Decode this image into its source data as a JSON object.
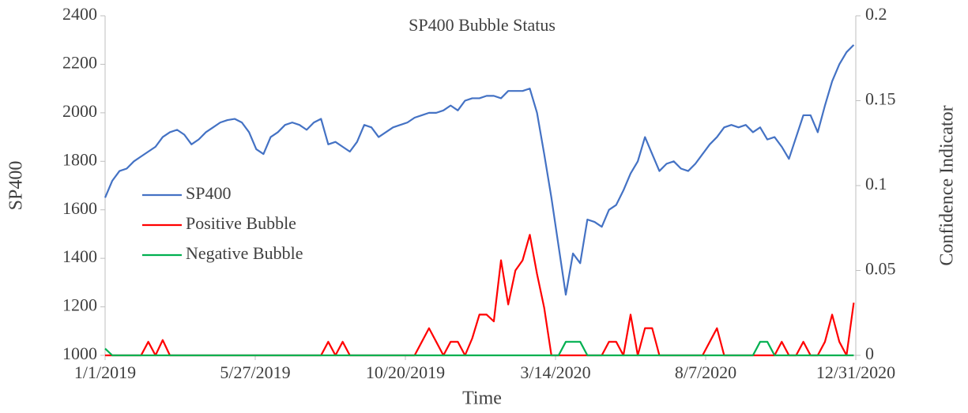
{
  "chart_data": {
    "type": "line",
    "title": "SP400 Bubble Status",
    "xlabel": "Time",
    "ylabel": "SP400",
    "y2label": "Confidence Indicator",
    "x": [
      "1/1/2019",
      "1/8/2019",
      "1/15/2019",
      "1/22/2019",
      "1/29/2019",
      "2/5/2019",
      "2/12/2019",
      "2/19/2019",
      "2/26/2019",
      "3/5/2019",
      "3/12/2019",
      "3/19/2019",
      "3/26/2019",
      "4/2/2019",
      "4/9/2019",
      "4/16/2019",
      "4/23/2019",
      "4/30/2019",
      "5/7/2019",
      "5/14/2019",
      "5/21/2019",
      "5/28/2019",
      "6/4/2019",
      "6/11/2019",
      "6/18/2019",
      "6/25/2019",
      "7/2/2019",
      "7/9/2019",
      "7/16/2019",
      "7/23/2019",
      "7/30/2019",
      "8/6/2019",
      "8/13/2019",
      "8/20/2019",
      "8/27/2019",
      "9/3/2019",
      "9/10/2019",
      "9/17/2019",
      "9/24/2019",
      "10/1/2019",
      "10/8/2019",
      "10/15/2019",
      "10/22/2019",
      "10/29/2019",
      "11/5/2019",
      "11/12/2019",
      "11/19/2019",
      "11/26/2019",
      "12/3/2019",
      "12/10/2019",
      "12/17/2019",
      "12/24/2019",
      "12/31/2019",
      "1/7/2020",
      "1/14/2020",
      "1/21/2020",
      "1/28/2020",
      "2/4/2020",
      "2/11/2020",
      "2/18/2020",
      "2/25/2020",
      "3/3/2020",
      "3/10/2020",
      "3/17/2020",
      "3/24/2020",
      "3/31/2020",
      "4/7/2020",
      "4/14/2020",
      "4/21/2020",
      "4/28/2020",
      "5/5/2020",
      "5/12/2020",
      "5/19/2020",
      "5/26/2020",
      "6/2/2020",
      "6/9/2020",
      "6/16/2020",
      "6/23/2020",
      "6/30/2020",
      "7/7/2020",
      "7/14/2020",
      "7/21/2020",
      "7/28/2020",
      "8/4/2020",
      "8/11/2020",
      "8/18/2020",
      "8/25/2020",
      "9/1/2020",
      "9/8/2020",
      "9/15/2020",
      "9/22/2020",
      "9/29/2020",
      "10/6/2020",
      "10/13/2020",
      "10/20/2020",
      "10/27/2020",
      "11/3/2020",
      "11/10/2020",
      "11/17/2020",
      "11/24/2020",
      "12/1/2020",
      "12/8/2020",
      "12/15/2020",
      "12/22/2020",
      "12/29/2020"
    ],
    "series": [
      {
        "name": "SP400",
        "color": "#4472c4",
        "values": [
          1650,
          1720,
          1760,
          1770,
          1800,
          1820,
          1840,
          1860,
          1900,
          1920,
          1930,
          1910,
          1870,
          1890,
          1920,
          1940,
          1960,
          1970,
          1975,
          1960,
          1920,
          1850,
          1830,
          1900,
          1920,
          1950,
          1960,
          1950,
          1930,
          1960,
          1975,
          1870,
          1880,
          1860,
          1840,
          1880,
          1950,
          1940,
          1900,
          1920,
          1940,
          1950,
          1960,
          1980,
          1990,
          2000,
          2000,
          2010,
          2030,
          2010,
          2050,
          2060,
          2060,
          2070,
          2070,
          2060,
          2090,
          2090,
          2090,
          2100,
          2000,
          1830,
          1650,
          1450,
          1250,
          1420,
          1380,
          1560,
          1550,
          1530,
          1600,
          1620,
          1680,
          1750,
          1800,
          1900,
          1830,
          1760,
          1790,
          1800,
          1770,
          1760,
          1790,
          1830,
          1870,
          1900,
          1940,
          1950,
          1940,
          1950,
          1920,
          1940,
          1890,
          1900,
          1860,
          1810,
          1900,
          1990,
          1990,
          1920,
          2030,
          2130,
          2200,
          2250,
          2280
        ]
      },
      {
        "name": "Positive Bubble",
        "color": "#ff0000",
        "axis": "y2",
        "values": [
          0,
          0,
          0,
          0,
          0,
          0,
          0.008,
          0,
          0.009,
          0,
          0,
          0,
          0,
          0,
          0,
          0,
          0,
          0,
          0,
          0,
          0,
          0,
          0,
          0,
          0,
          0,
          0,
          0,
          0,
          0,
          0,
          0.008,
          0,
          0.008,
          0,
          0,
          0,
          0,
          0,
          0,
          0,
          0,
          0,
          0,
          0.008,
          0.016,
          0.008,
          0,
          0.008,
          0.008,
          0,
          0.01,
          0.024,
          0.024,
          0.02,
          0.056,
          0.03,
          0.05,
          0.056,
          0.071,
          0.048,
          0.028,
          0,
          0,
          0,
          0,
          0,
          0,
          0,
          0,
          0.008,
          0.008,
          0,
          0.024,
          0,
          0.016,
          0.016,
          0,
          0,
          0,
          0,
          0,
          0,
          0,
          0.008,
          0.016,
          0,
          0,
          0,
          0,
          0,
          0,
          0,
          0,
          0.008,
          0,
          0,
          0.008,
          0,
          0,
          0.008,
          0.024,
          0.008,
          0,
          0.031
        ]
      },
      {
        "name": "Negative Bubble",
        "color": "#00b050",
        "axis": "y2",
        "values": [
          0.004,
          0,
          0,
          0,
          0,
          0,
          0,
          0,
          0,
          0,
          0,
          0,
          0,
          0,
          0,
          0,
          0,
          0,
          0,
          0,
          0,
          0,
          0,
          0,
          0,
          0,
          0,
          0,
          0,
          0,
          0,
          0,
          0,
          0,
          0,
          0,
          0,
          0,
          0,
          0,
          0,
          0,
          0,
          0,
          0,
          0,
          0,
          0,
          0,
          0,
          0,
          0,
          0,
          0,
          0,
          0,
          0,
          0,
          0,
          0,
          0,
          0,
          0,
          0,
          0.008,
          0.008,
          0.008,
          0,
          0,
          0,
          0,
          0,
          0,
          0,
          0,
          0,
          0,
          0,
          0,
          0,
          0,
          0,
          0,
          0,
          0,
          0,
          0,
          0,
          0,
          0,
          0,
          0.008,
          0.008,
          0,
          0,
          0,
          0,
          0,
          0,
          0,
          0,
          0,
          0,
          0,
          0
        ]
      }
    ],
    "xlim": [
      "1/1/2019",
      "12/31/2020"
    ],
    "xticks": [
      "1/1/2019",
      "5/27/2019",
      "10/20/2019",
      "3/14/2020",
      "8/7/2020",
      "12/31/2020"
    ],
    "ylim": [
      1000,
      2400
    ],
    "yticks": [
      1000,
      1200,
      1400,
      1600,
      1800,
      2000,
      2200,
      2400
    ],
    "y2lim": [
      0,
      0.2
    ],
    "y2ticks": [
      0,
      0.05,
      0.1,
      0.15,
      0.2
    ],
    "legend": "left"
  }
}
